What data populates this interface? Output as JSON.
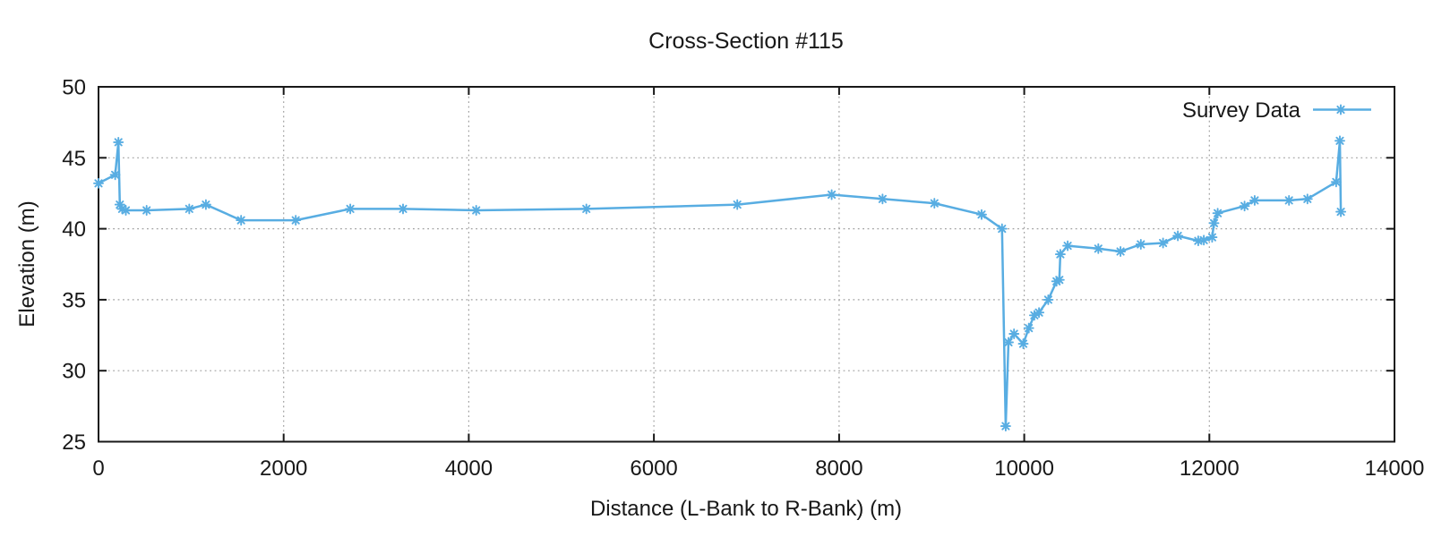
{
  "title": "Cross-Section #115",
  "legend": {
    "label": "Survey Data",
    "position": "top-right"
  },
  "colors": {
    "series": "#58ADE2",
    "grid": "#A0A0A0",
    "axis": "#181818",
    "background": "#FFFFFF"
  },
  "chart_data": {
    "type": "line",
    "title": "Cross-Section #115",
    "xlabel": "Distance (L-Bank to R-Bank) (m)",
    "ylabel": "Elevation (m)",
    "xlim": [
      0,
      14000
    ],
    "ylim": [
      25,
      50
    ],
    "xticks": [
      0,
      2000,
      4000,
      6000,
      8000,
      10000,
      12000,
      14000
    ],
    "yticks": [
      25,
      30,
      35,
      40,
      45,
      50
    ],
    "grid": true,
    "legend_position": "top-right",
    "series": [
      {
        "name": "Survey Data",
        "color": "#58ADE2",
        "marker": "asterisk",
        "points": [
          [
            0,
            43.2
          ],
          [
            180,
            43.8
          ],
          [
            215,
            46.1
          ],
          [
            230,
            41.7
          ],
          [
            255,
            41.4
          ],
          [
            295,
            41.3
          ],
          [
            520,
            41.3
          ],
          [
            980,
            41.4
          ],
          [
            1160,
            41.7
          ],
          [
            1540,
            40.6
          ],
          [
            2130,
            40.6
          ],
          [
            2720,
            41.4
          ],
          [
            3290,
            41.4
          ],
          [
            4080,
            41.3
          ],
          [
            5270,
            41.4
          ],
          [
            6900,
            41.7
          ],
          [
            7920,
            42.4
          ],
          [
            8470,
            42.1
          ],
          [
            9030,
            41.8
          ],
          [
            9540,
            41.0
          ],
          [
            9760,
            40.0
          ],
          [
            9800,
            26.1
          ],
          [
            9830,
            32.0
          ],
          [
            9890,
            32.6
          ],
          [
            9990,
            31.9
          ],
          [
            10050,
            33.0
          ],
          [
            10110,
            33.9
          ],
          [
            10160,
            34.1
          ],
          [
            10260,
            35.0
          ],
          [
            10350,
            36.3
          ],
          [
            10380,
            36.4
          ],
          [
            10390,
            38.2
          ],
          [
            10470,
            38.8
          ],
          [
            10800,
            38.6
          ],
          [
            11040,
            38.4
          ],
          [
            11260,
            38.9
          ],
          [
            11500,
            39.0
          ],
          [
            11660,
            39.5
          ],
          [
            11880,
            39.15
          ],
          [
            11940,
            39.2
          ],
          [
            12030,
            39.4
          ],
          [
            12050,
            40.4
          ],
          [
            12090,
            41.1
          ],
          [
            12380,
            41.6
          ],
          [
            12490,
            42.0
          ],
          [
            12860,
            42.0
          ],
          [
            13060,
            42.1
          ],
          [
            13370,
            43.3
          ],
          [
            13410,
            46.2
          ],
          [
            13420,
            41.2
          ]
        ]
      }
    ]
  }
}
